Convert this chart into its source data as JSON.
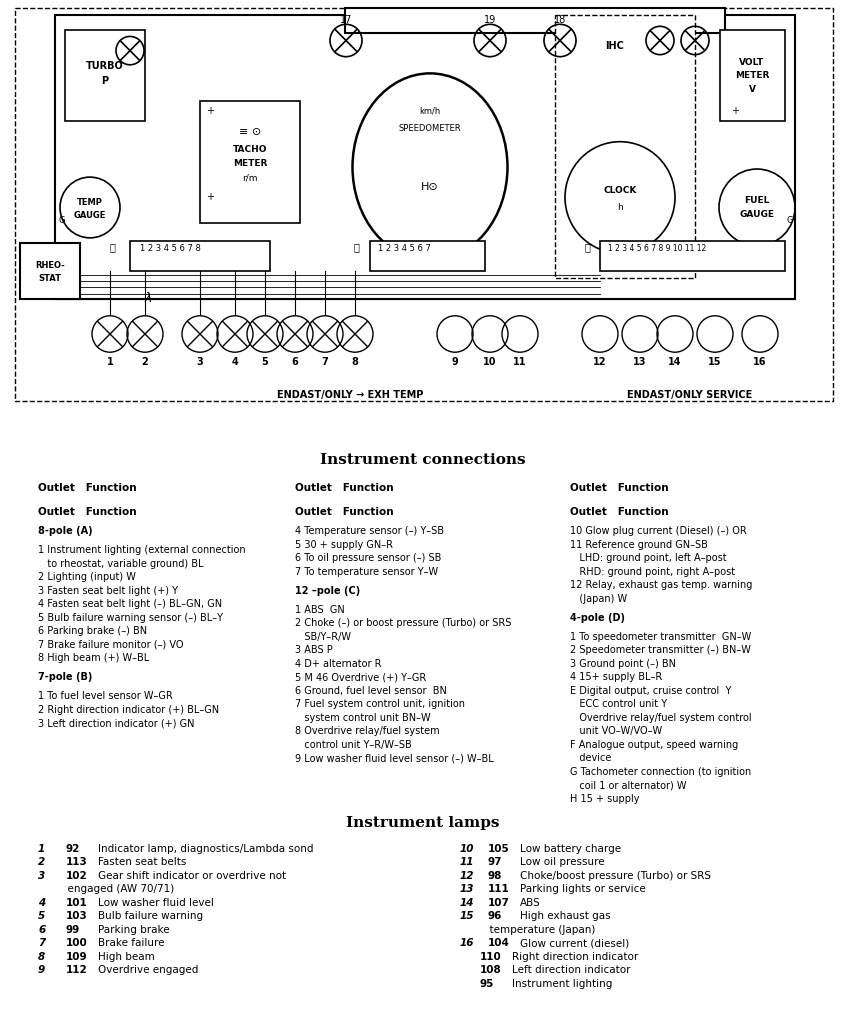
{
  "diagram_title": "Instrument connections",
  "lamps_title": "Instrument lamps",
  "connections_col1": [
    {
      "text": "Outlet   Function",
      "bold": true,
      "size": 7.5
    },
    {
      "text": "",
      "bold": false,
      "size": 6
    },
    {
      "text": "8-pole (A)",
      "bold": true,
      "size": 7
    },
    {
      "text": "",
      "bold": false,
      "size": 4
    },
    {
      "text": "1 Instrument lighting (external connection",
      "bold": false,
      "size": 7
    },
    {
      "text": "   to rheostat, variable ground) BL",
      "bold": false,
      "size": 7
    },
    {
      "text": "2 Lighting (input) W",
      "bold": false,
      "size": 7
    },
    {
      "text": "3 Fasten seat belt light (+) Y",
      "bold": false,
      "size": 7
    },
    {
      "text": "4 Fasten seat belt light (–) BL–GN, GN",
      "bold": false,
      "size": 7
    },
    {
      "text": "5 Bulb failure warning sensor (–) BL–Y",
      "bold": false,
      "size": 7
    },
    {
      "text": "6 Parking brake (–) BN",
      "bold": false,
      "size": 7
    },
    {
      "text": "7 Brake failure monitor (–) VO",
      "bold": false,
      "size": 7
    },
    {
      "text": "8 High beam (+) W–BL",
      "bold": false,
      "size": 7
    },
    {
      "text": "",
      "bold": false,
      "size": 4
    },
    {
      "text": "7-pole (B)",
      "bold": true,
      "size": 7
    },
    {
      "text": "",
      "bold": false,
      "size": 4
    },
    {
      "text": "1 To fuel level sensor W–GR",
      "bold": false,
      "size": 7
    },
    {
      "text": "2 Right direction indicator (+) BL–GN",
      "bold": false,
      "size": 7
    },
    {
      "text": "3 Left direction indicator (+) GN",
      "bold": false,
      "size": 7
    }
  ],
  "connections_col2": [
    {
      "text": "Outlet   Function",
      "bold": true,
      "size": 7.5
    },
    {
      "text": "",
      "bold": false,
      "size": 6
    },
    {
      "text": "4 Temperature sensor (–) Y–SB",
      "bold": false,
      "size": 7
    },
    {
      "text": "5 30 + supply GN–R",
      "bold": false,
      "size": 7
    },
    {
      "text": "6 To oil pressure sensor (–) SB",
      "bold": false,
      "size": 7
    },
    {
      "text": "7 To temperature sensor Y–W",
      "bold": false,
      "size": 7
    },
    {
      "text": "",
      "bold": false,
      "size": 4
    },
    {
      "text": "12 –pole (C)",
      "bold": true,
      "size": 7
    },
    {
      "text": "",
      "bold": false,
      "size": 4
    },
    {
      "text": "1 ABS  GN",
      "bold": false,
      "size": 7
    },
    {
      "text": "2 Choke (–) or boost pressure (Turbo) or SRS",
      "bold": false,
      "size": 7
    },
    {
      "text": "   SB/Y–R/W",
      "bold": false,
      "size": 7
    },
    {
      "text": "3 ABS P",
      "bold": false,
      "size": 7
    },
    {
      "text": "4 D+ alternator R",
      "bold": false,
      "size": 7
    },
    {
      "text": "5 M 46 Overdrive (+) Y–GR",
      "bold": false,
      "size": 7
    },
    {
      "text": "6 Ground, fuel level sensor  BN",
      "bold": false,
      "size": 7
    },
    {
      "text": "7 Fuel system control unit, ignition",
      "bold": false,
      "size": 7
    },
    {
      "text": "   system control unit BN–W",
      "bold": false,
      "size": 7
    },
    {
      "text": "8 Overdrive relay/fuel system",
      "bold": false,
      "size": 7
    },
    {
      "text": "   control unit Y–R/W–SB",
      "bold": false,
      "size": 7
    },
    {
      "text": "9 Low washer fluid level sensor (–) W–BL",
      "bold": false,
      "size": 7
    }
  ],
  "connections_col3": [
    {
      "text": "Outlet   Function",
      "bold": true,
      "size": 7.5
    },
    {
      "text": "",
      "bold": false,
      "size": 6
    },
    {
      "text": "10 Glow plug current (Diesel) (–) OR",
      "bold": false,
      "size": 7
    },
    {
      "text": "11 Reference ground GN–SB",
      "bold": false,
      "size": 7
    },
    {
      "text": "   LHD: ground point, left A–post",
      "bold": false,
      "size": 7
    },
    {
      "text": "   RHD: ground point, right A–post",
      "bold": false,
      "size": 7
    },
    {
      "text": "12 Relay, exhaust gas temp. warning",
      "bold": false,
      "size": 7
    },
    {
      "text": "   (Japan) W",
      "bold": false,
      "size": 7
    },
    {
      "text": "",
      "bold": false,
      "size": 4
    },
    {
      "text": "4-pole (D)",
      "bold": true,
      "size": 7
    },
    {
      "text": "",
      "bold": false,
      "size": 4
    },
    {
      "text": "1 To speedometer transmitter  GN–W",
      "bold": false,
      "size": 7
    },
    {
      "text": "2 Speedometer transmitter (–) BN–W",
      "bold": false,
      "size": 7
    },
    {
      "text": "3 Ground point (–) BN",
      "bold": false,
      "size": 7
    },
    {
      "text": "4 15+ supply BL–R",
      "bold": false,
      "size": 7
    },
    {
      "text": "E Digital output, cruise control  Y",
      "bold": false,
      "size": 7
    },
    {
      "text": "   ECC control unit Y",
      "bold": false,
      "size": 7
    },
    {
      "text": "   Overdrive relay/fuel system control",
      "bold": false,
      "size": 7
    },
    {
      "text": "   unit VO–W/VO–W",
      "bold": false,
      "size": 7
    },
    {
      "text": "F Analogue output, speed warning",
      "bold": false,
      "size": 7
    },
    {
      "text": "   device",
      "bold": false,
      "size": 7
    },
    {
      "text": "G Tachometer connection (to ignition",
      "bold": false,
      "size": 7
    },
    {
      "text": "   coil 1 or alternator) W",
      "bold": false,
      "size": 7
    },
    {
      "text": "H 15 + supply",
      "bold": false,
      "size": 7
    }
  ],
  "lamps_col1_lines": [
    {
      "n": "1",
      "code": "92",
      "desc": "Indicator lamp, diagnostics/Lambda sond",
      "cont": false
    },
    {
      "n": "2",
      "code": "113",
      "desc": "Fasten seat belts",
      "cont": false
    },
    {
      "n": "3",
      "code": "102",
      "desc": "Gear shift indicator or overdrive not",
      "cont": false
    },
    {
      "n": "",
      "code": "",
      "desc": "      engaged (AW 70/71)",
      "cont": true
    },
    {
      "n": "4",
      "code": "101",
      "desc": "Low washer fluid level",
      "cont": false
    },
    {
      "n": "5",
      "code": "103",
      "desc": "Bulb failure warning",
      "cont": false
    },
    {
      "n": "6",
      "code": "99",
      "desc": "Parking brake",
      "cont": false
    },
    {
      "n": "7",
      "code": "100",
      "desc": "Brake failure",
      "cont": false
    },
    {
      "n": "8",
      "code": "109",
      "desc": "High beam",
      "cont": false
    },
    {
      "n": "9",
      "code": "112",
      "desc": "Overdrive engaged",
      "cont": false
    }
  ],
  "lamps_col2_lines": [
    {
      "n": "10",
      "code": "105",
      "desc": "Low battery charge",
      "cont": false
    },
    {
      "n": "11",
      "code": "97",
      "desc": "Low oil pressure",
      "cont": false
    },
    {
      "n": "12",
      "code": "98",
      "desc": "Choke/boost pressure (Turbo) or SRS",
      "cont": false
    },
    {
      "n": "13",
      "code": "111",
      "desc": "Parking lights or service",
      "cont": false
    },
    {
      "n": "14",
      "code": "107",
      "desc": "ABS",
      "cont": false
    },
    {
      "n": "15",
      "code": "96",
      "desc": "High exhaust gas",
      "cont": false
    },
    {
      "n": "",
      "code": "",
      "desc": "      temperature (Japan)",
      "cont": true
    },
    {
      "n": "16",
      "code": "104",
      "desc": "Glow current (diesel)",
      "cont": false
    },
    {
      "n": "",
      "code": "110",
      "desc": "Right direction indicator",
      "cont": true
    },
    {
      "n": "",
      "code": "108",
      "desc": "Left direction indicator",
      "cont": true
    },
    {
      "n": "",
      "code": "95",
      "desc": "Instrument lighting",
      "cont": true
    }
  ]
}
